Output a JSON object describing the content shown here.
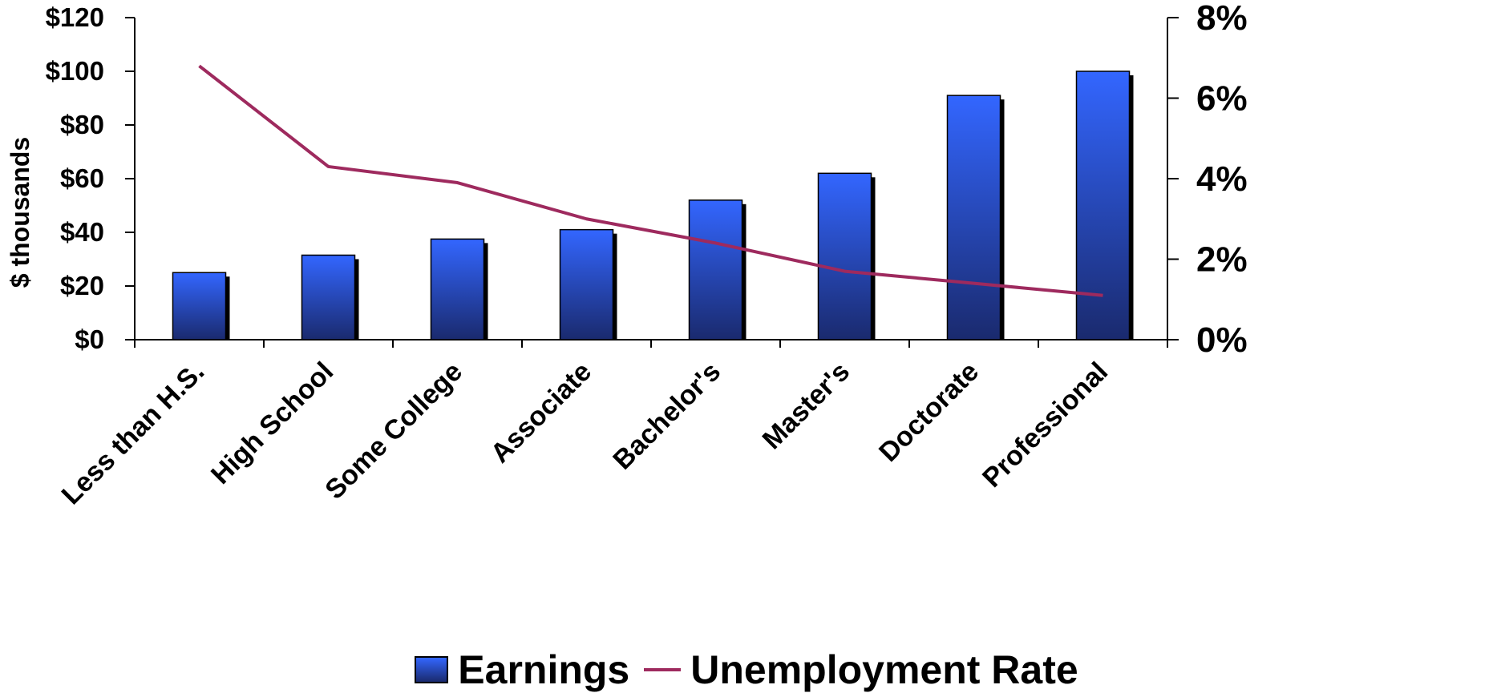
{
  "colors": {
    "bar_top": "#3366ff",
    "bar_bottom": "#1a2a6e",
    "bar_shadow": "#000000",
    "line": "#9e2a5e",
    "axis": "#000000"
  },
  "chart_data": {
    "type": "bar",
    "title": "",
    "categories": [
      "Less than H.S.",
      "High School",
      "Some College",
      "Associate",
      "Bachelor's",
      "Master's",
      "Doctorate",
      "Professional"
    ],
    "series": [
      {
        "name": "Earnings",
        "type": "bar",
        "axis": "left",
        "values": [
          25,
          31.5,
          37.5,
          41,
          52,
          62,
          91,
          100
        ]
      },
      {
        "name": "Unemployment Rate",
        "type": "line",
        "axis": "right",
        "values": [
          6.8,
          4.3,
          3.9,
          3.0,
          2.4,
          1.7,
          1.4,
          1.1
        ]
      }
    ],
    "ylabel": "$ thousands",
    "ylim": [
      0,
      120
    ],
    "y_ticks": [
      "$0",
      "$20",
      "$40",
      "$60",
      "$80",
      "$100",
      "$120"
    ],
    "y2lim": [
      0,
      8
    ],
    "y2_ticks": [
      "0%",
      "2%",
      "4%",
      "6%",
      "8%"
    ],
    "grid": false,
    "legend_position": "bottom"
  }
}
